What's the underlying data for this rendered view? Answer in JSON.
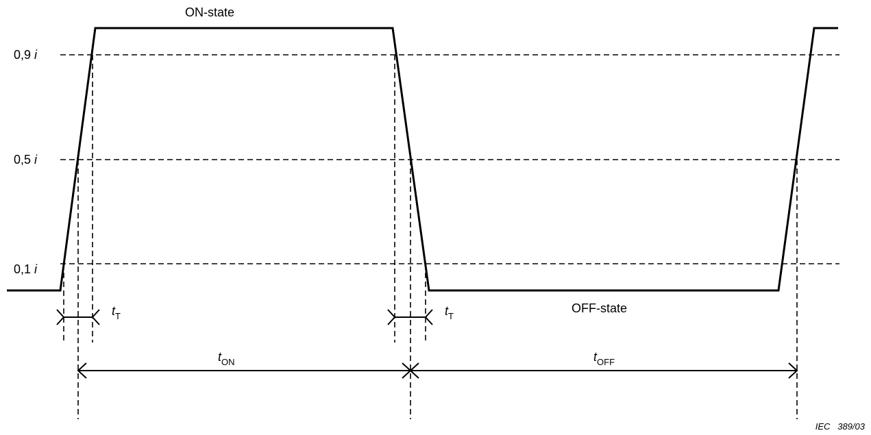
{
  "levels": {
    "high": {
      "value": "0,9",
      "var": "i"
    },
    "mid": {
      "value": "0,5",
      "var": "i"
    },
    "low": {
      "value": "0,1",
      "var": "i"
    }
  },
  "states": {
    "on": "ON-state",
    "off": "OFF-state"
  },
  "timings": {
    "transition_1": {
      "t": "t",
      "sub": "T"
    },
    "transition_2": {
      "t": "t",
      "sub": "T"
    },
    "on_time": {
      "t": "t",
      "sub": "ON"
    },
    "off_time": {
      "t": "t",
      "sub": "OFF"
    }
  },
  "credit": "IEC   389/03"
}
